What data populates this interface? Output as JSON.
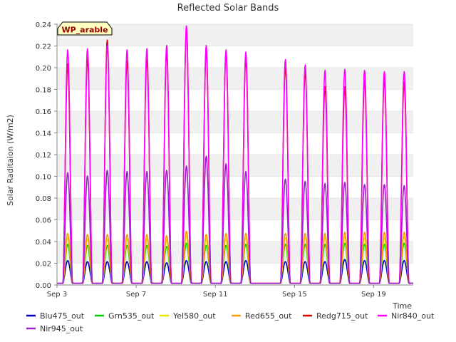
{
  "chart_data": {
    "type": "line",
    "title": "Reflected Solar Bands",
    "xlabel": "Time",
    "ylabel": "Solar Raditaion (W/m2)",
    "badge": "WP_arable",
    "ylim": [
      0,
      0.24
    ],
    "xlim": [
      "2024-09-03",
      "2024-09-21"
    ],
    "y_ticks": [
      "0.00",
      "0.02",
      "0.04",
      "0.06",
      "0.08",
      "0.10",
      "0.12",
      "0.14",
      "0.16",
      "0.18",
      "0.20",
      "0.22",
      "0.24"
    ],
    "x_ticks": [
      {
        "date": "2024-09-03",
        "label": "Sep 3"
      },
      {
        "date": "2024-09-07",
        "label": "Sep 7"
      },
      {
        "date": "2024-09-11",
        "label": "Sep 11"
      },
      {
        "date": "2024-09-15",
        "label": "Sep 15"
      },
      {
        "date": "2024-09-19",
        "label": "Sep 19"
      }
    ],
    "grid": "horizontal bands",
    "legend_position": "bottom",
    "days": [
      "2024-09-03",
      "2024-09-04",
      "2024-09-05",
      "2024-09-06",
      "2024-09-07",
      "2024-09-08",
      "2024-09-09",
      "2024-09-10",
      "2024-09-11",
      "2024-09-12",
      "2024-09-14",
      "2024-09-15",
      "2024-09-16",
      "2024-09-17",
      "2024-09-18",
      "2024-09-19",
      "2024-09-20"
    ],
    "series": [
      {
        "name": "Blu475_out",
        "color": "#0000cc",
        "daily_peak": [
          0.021,
          0.02,
          0.02,
          0.02,
          0.02,
          0.019,
          0.021,
          0.02,
          0.02,
          0.021,
          0.02,
          0.02,
          0.02,
          0.022,
          0.021,
          0.021,
          0.021
        ]
      },
      {
        "name": "Grn535_out",
        "color": "#00cc00",
        "daily_peak": [
          0.036,
          0.035,
          0.035,
          0.035,
          0.035,
          0.034,
          0.037,
          0.035,
          0.035,
          0.036,
          0.036,
          0.036,
          0.036,
          0.037,
          0.036,
          0.036,
          0.037
        ]
      },
      {
        "name": "Yel580_out",
        "color": "#e6e600",
        "daily_peak": [
          0.042,
          0.041,
          0.041,
          0.041,
          0.041,
          0.04,
          0.044,
          0.041,
          0.041,
          0.042,
          0.042,
          0.042,
          0.042,
          0.043,
          0.042,
          0.042,
          0.043
        ]
      },
      {
        "name": "Red655_out",
        "color": "#ff9900",
        "daily_peak": [
          0.046,
          0.045,
          0.045,
          0.045,
          0.045,
          0.044,
          0.048,
          0.045,
          0.046,
          0.046,
          0.046,
          0.046,
          0.046,
          0.047,
          0.047,
          0.047,
          0.047
        ]
      },
      {
        "name": "Redg715_out",
        "color": "#dd0000",
        "daily_peak": [
          0.202,
          0.207,
          0.224,
          0.205,
          0.207,
          0.213,
          0.234,
          0.215,
          0.212,
          0.207,
          0.199,
          0.195,
          0.181,
          0.181,
          0.187,
          0.188,
          0.185
        ]
      },
      {
        "name": "Nir840_out",
        "color": "#ff00ff",
        "daily_peak": [
          0.215,
          0.216,
          0.219,
          0.215,
          0.216,
          0.219,
          0.237,
          0.219,
          0.215,
          0.213,
          0.206,
          0.201,
          0.196,
          0.197,
          0.196,
          0.195,
          0.195
        ]
      },
      {
        "name": "Nir945_out",
        "color": "#9922cc",
        "daily_peak": [
          0.102,
          0.099,
          0.104,
          0.103,
          0.103,
          0.104,
          0.108,
          0.117,
          0.11,
          0.103,
          0.096,
          0.094,
          0.092,
          0.093,
          0.091,
          0.091,
          0.09
        ]
      }
    ]
  }
}
